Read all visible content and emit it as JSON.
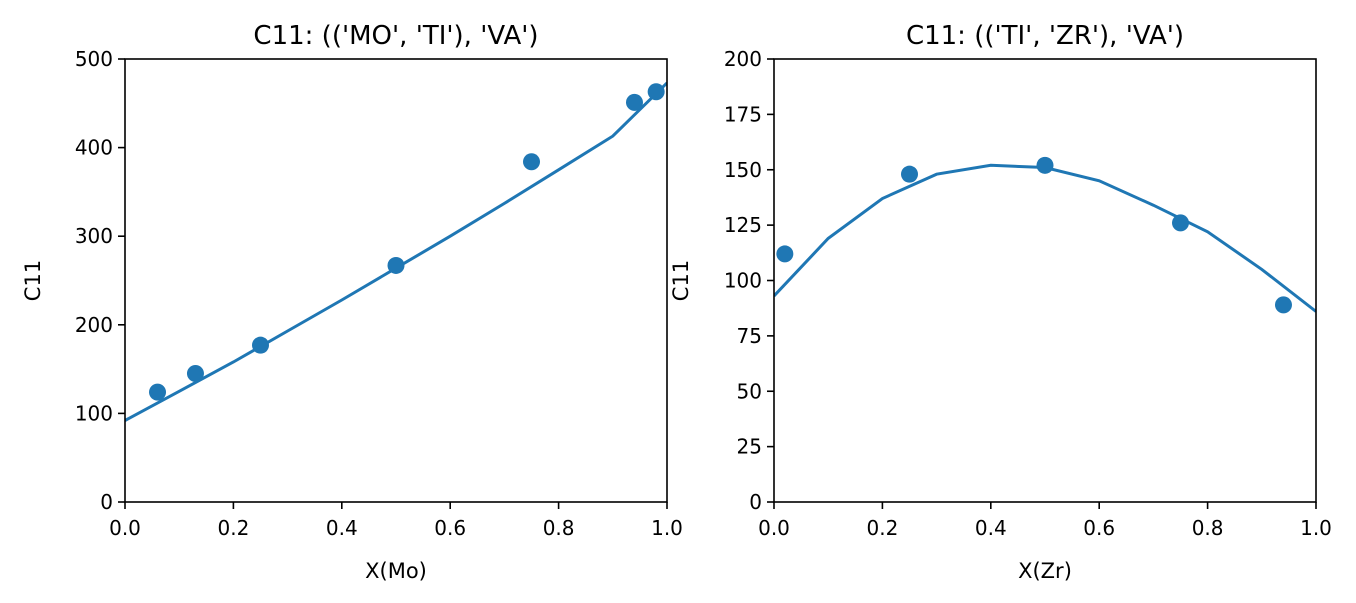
{
  "chart_data": [
    {
      "type": "scatter",
      "title": "C11: (('MO', 'TI'), 'VA')",
      "xlabel": "X(Mo)",
      "ylabel": "C11",
      "xlim": [
        0.0,
        1.0
      ],
      "ylim": [
        0,
        500
      ],
      "xticks": [
        0.0,
        0.2,
        0.4,
        0.6,
        0.8,
        1.0
      ],
      "xtick_labels": [
        "0.0",
        "0.2",
        "0.4",
        "0.6",
        "0.8",
        "1.0"
      ],
      "yticks": [
        0,
        100,
        200,
        300,
        400,
        500
      ],
      "ytick_labels": [
        "0",
        "100",
        "200",
        "300",
        "400",
        "500"
      ],
      "color": "#1f77b4",
      "points": [
        {
          "x": 0.06,
          "y": 124
        },
        {
          "x": 0.13,
          "y": 145
        },
        {
          "x": 0.25,
          "y": 177
        },
        {
          "x": 0.5,
          "y": 267
        },
        {
          "x": 0.75,
          "y": 384
        },
        {
          "x": 0.94,
          "y": 451
        },
        {
          "x": 0.98,
          "y": 463
        }
      ],
      "fit_line": {
        "x": [
          0.0,
          0.1,
          0.2,
          0.3,
          0.4,
          0.5,
          0.6,
          0.7,
          0.8,
          0.9,
          1.0
        ],
        "y": [
          92,
          125,
          158,
          193,
          228,
          264,
          300,
          337,
          375,
          413,
          473
        ]
      },
      "grid": false
    },
    {
      "type": "scatter",
      "title": "C11: (('TI', 'ZR'), 'VA')",
      "xlabel": "X(Zr)",
      "ylabel": "C11",
      "xlim": [
        0.0,
        1.0
      ],
      "ylim": [
        0,
        200
      ],
      "xticks": [
        0.0,
        0.2,
        0.4,
        0.6,
        0.8,
        1.0
      ],
      "xtick_labels": [
        "0.0",
        "0.2",
        "0.4",
        "0.6",
        "0.8",
        "1.0"
      ],
      "yticks": [
        0,
        25,
        50,
        75,
        100,
        125,
        150,
        175,
        200
      ],
      "ytick_labels": [
        "0",
        "25",
        "50",
        "75",
        "100",
        "125",
        "150",
        "175",
        "200"
      ],
      "color": "#1f77b4",
      "points": [
        {
          "x": 0.02,
          "y": 112
        },
        {
          "x": 0.25,
          "y": 148
        },
        {
          "x": 0.5,
          "y": 152
        },
        {
          "x": 0.75,
          "y": 126
        },
        {
          "x": 0.94,
          "y": 89
        }
      ],
      "fit_line": {
        "x": [
          0.0,
          0.1,
          0.2,
          0.3,
          0.4,
          0.5,
          0.6,
          0.7,
          0.8,
          0.9,
          1.0
        ],
        "y": [
          93,
          119,
          137,
          148,
          152,
          151,
          145,
          134,
          122,
          105,
          86
        ]
      },
      "grid": false
    }
  ]
}
